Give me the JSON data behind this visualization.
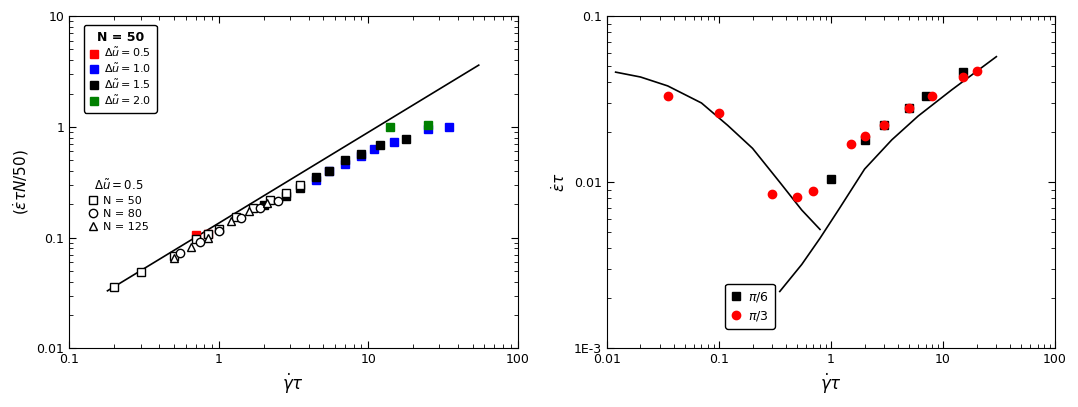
{
  "panel_a": {
    "xlabel": "$\\dot{\\gamma}\\tau$",
    "ylabel": "$(\\dot{\\varepsilon}\\tau N/50)$",
    "xlim": [
      0.15,
      100
    ],
    "ylim": [
      0.01,
      10
    ],
    "fit_x": [
      0.18,
      55
    ],
    "fit_A": 0.135,
    "fit_slope": 0.82,
    "data_filled": [
      {
        "label": "$\\Delta\\tilde{u} = 0.5$",
        "color": "red",
        "marker": "s",
        "x": [
          0.7,
          0.85
        ],
        "y": [
          0.105,
          0.108
        ]
      },
      {
        "label": "$\\Delta\\tilde{u} = 1.0$",
        "color": "blue",
        "marker": "s",
        "x": [
          4.5,
          5.5,
          7.0,
          9.0,
          11.0,
          15.0,
          25.0,
          35.0
        ],
        "y": [
          0.33,
          0.4,
          0.46,
          0.55,
          0.63,
          0.73,
          0.95,
          1.0
        ]
      },
      {
        "label": "$\\Delta\\tilde{u} = 1.5$",
        "color": "black",
        "marker": "s",
        "x": [
          2.0,
          2.8,
          3.5,
          4.5,
          5.5,
          7.0,
          9.0,
          12.0,
          18.0
        ],
        "y": [
          0.195,
          0.24,
          0.28,
          0.35,
          0.4,
          0.5,
          0.57,
          0.68,
          0.78
        ]
      },
      {
        "label": "$\\Delta\\tilde{u} = 2.0$",
        "color": "green",
        "marker": "s",
        "x": [
          14.0,
          25.0
        ],
        "y": [
          1.0,
          1.05
        ]
      }
    ],
    "data_open": [
      {
        "label": "N = 50",
        "marker": "s",
        "mfc": "white",
        "mec": "black",
        "x": [
          0.2,
          0.3,
          0.5,
          0.7,
          0.85,
          1.0,
          1.3,
          1.7,
          2.2,
          2.8,
          3.5
        ],
        "y": [
          0.036,
          0.049,
          0.068,
          0.098,
          0.108,
          0.12,
          0.155,
          0.185,
          0.22,
          0.255,
          0.3
        ]
      },
      {
        "label": "N = 80",
        "marker": "o",
        "mfc": "white",
        "mec": "black",
        "x": [
          0.55,
          0.75,
          1.0,
          1.4,
          1.9,
          2.5
        ],
        "y": [
          0.073,
          0.092,
          0.115,
          0.15,
          0.185,
          0.215
        ]
      },
      {
        "label": "N = 125",
        "marker": "^",
        "mfc": "white",
        "mec": "black",
        "x": [
          0.5,
          0.65,
          0.85,
          1.2,
          1.6,
          2.1
        ],
        "y": [
          0.065,
          0.082,
          0.1,
          0.14,
          0.175,
          0.205
        ]
      }
    ]
  },
  "panel_b": {
    "xlabel": "$\\dot{\\gamma}\\tau$",
    "ylabel": "$\\dot{\\varepsilon}\\tau$",
    "xlim": [
      0.01,
      100
    ],
    "ylim": [
      0.001,
      0.1
    ],
    "data_pi6": {
      "label": "$\\pi/6$",
      "color": "black",
      "marker": "s",
      "x": [
        1.0,
        2.0,
        3.0,
        5.0,
        7.0,
        15.0
      ],
      "y": [
        0.0105,
        0.018,
        0.022,
        0.028,
        0.033,
        0.046
      ]
    },
    "data_pi3": {
      "label": "$\\pi/3$",
      "color": "red",
      "marker": "o",
      "x": [
        0.035,
        0.1,
        0.3,
        0.5,
        0.7,
        1.5,
        2.0,
        3.0,
        5.0,
        8.0,
        15.0,
        20.0
      ],
      "y": [
        0.033,
        0.026,
        0.0085,
        0.0082,
        0.0088,
        0.017,
        0.019,
        0.022,
        0.028,
        0.033,
        0.043,
        0.047
      ]
    },
    "curve_decreasing_x": [
      0.012,
      0.02,
      0.035,
      0.07,
      0.12,
      0.2,
      0.35,
      0.55,
      0.8
    ],
    "curve_decreasing_y": [
      0.046,
      0.043,
      0.038,
      0.03,
      0.022,
      0.016,
      0.01,
      0.0068,
      0.0052
    ],
    "curve_increasing_x": [
      0.35,
      0.55,
      0.8,
      1.2,
      2.0,
      3.5,
      6.0,
      12.0,
      30.0
    ],
    "curve_increasing_y": [
      0.0022,
      0.0032,
      0.0046,
      0.007,
      0.012,
      0.018,
      0.025,
      0.036,
      0.057
    ]
  }
}
